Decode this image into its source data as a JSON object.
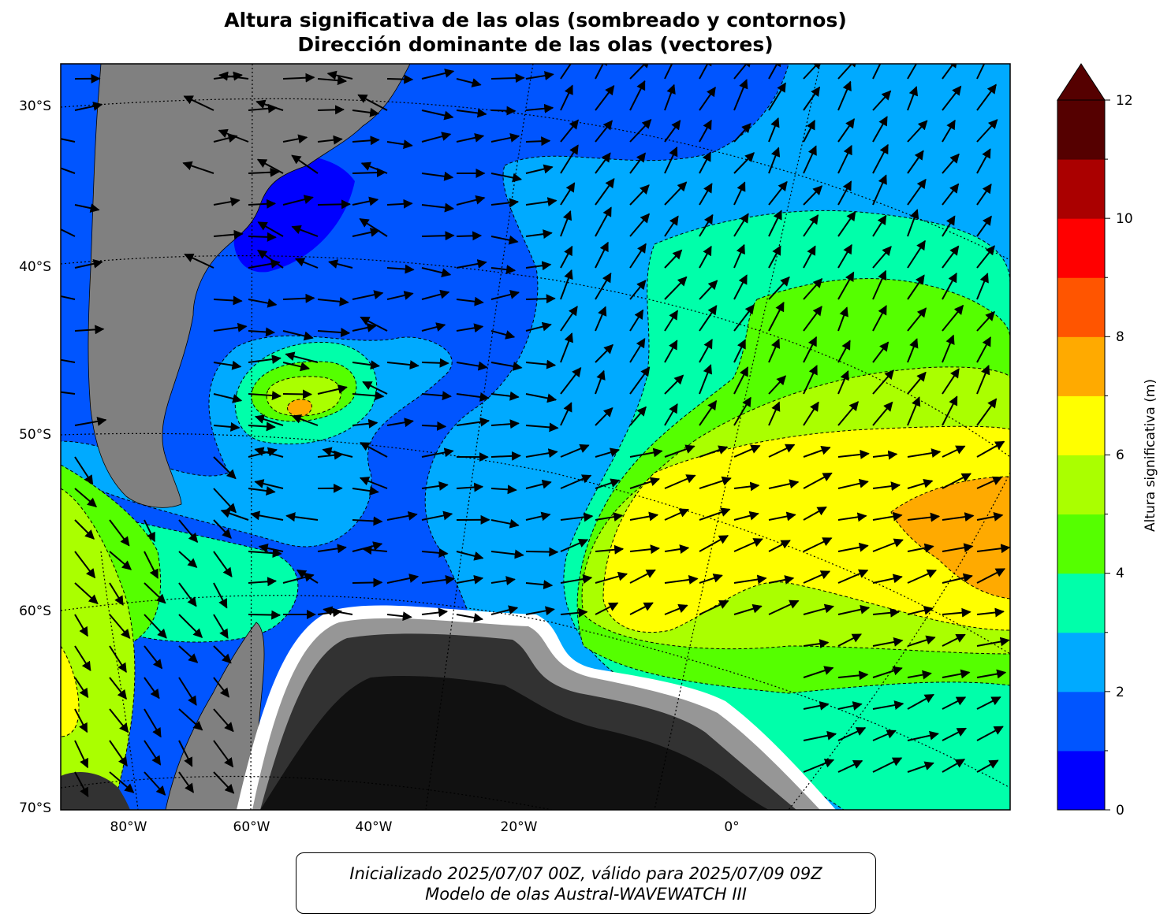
{
  "title": {
    "line1": "Altura significativa de las olas (sombreado y contornos)",
    "line2": "Dirección dominante de las olas (vectores)"
  },
  "lat_labels": [
    "30°S",
    "40°S",
    "50°S",
    "60°S",
    "70°S"
  ],
  "lon_labels": [
    "80°W",
    "60°W",
    "40°W",
    "20°W",
    "0°"
  ],
  "colorbar": {
    "label": "Altura significativa (m)",
    "ticks": [
      "0",
      "2",
      "4",
      "6",
      "8",
      "10",
      "12"
    ],
    "levels": [
      0,
      1,
      2,
      3,
      4,
      5,
      6,
      7,
      8,
      9,
      10,
      11,
      12
    ],
    "colors": [
      "#0000ff",
      "#0055ff",
      "#00aaff",
      "#00ffaa",
      "#55ff00",
      "#aaff00",
      "#ffff00",
      "#ffaa00",
      "#ff5500",
      "#ff0000",
      "#aa0000",
      "#550000"
    ],
    "extend": "max"
  },
  "map": {
    "land_color": "#808080",
    "ice_colors": [
      "#ffffff",
      "#c8c8c8",
      "#969696",
      "#646464",
      "#323232",
      "#111111"
    ]
  },
  "info": {
    "line1": "Inicializado 2025/07/07 00Z, válido para 2025/07/09 09Z",
    "line2": "Modelo de olas Austral-WAVEWATCH III"
  }
}
